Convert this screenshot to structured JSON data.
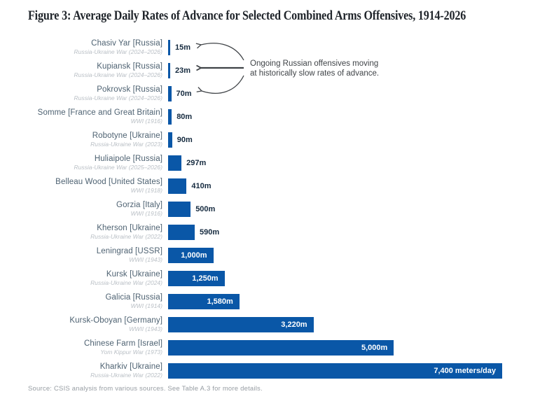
{
  "figure": {
    "title": "Figure 3: Average Daily Rates of Advance for Selected Combined Arms Offensives, 1914-2026",
    "source": "Source: CSIS analysis from various sources. See Table A.3 for more details.",
    "annotation": {
      "line1": "Ongoing Russian offensives moving",
      "line2": "at historically slow rates of advance."
    }
  },
  "chart_data": {
    "type": "bar",
    "orientation": "horizontal",
    "title": "Figure 3: Average Daily Rates of Advance for Selected Combined Arms Offensives, 1914-2026",
    "xlabel": "",
    "ylabel": "",
    "unit": "meters/day",
    "xlim": [
      0,
      7700
    ],
    "grid": false,
    "legend": "none",
    "bar_color": "#0a57a7",
    "inside_label_threshold": 1000,
    "rows": [
      {
        "label": "Chasiv Yar [Russia]",
        "sublabel": "Russia-Ukraine War (2024–2026)",
        "value": 15,
        "value_label": "15m"
      },
      {
        "label": "Kupiansk [Russia]",
        "sublabel": "Russia-Ukraine War (2024–2026)",
        "value": 23,
        "value_label": "23m"
      },
      {
        "label": "Pokrovsk [Russia]",
        "sublabel": "Russia-Ukraine War (2024–2026)",
        "value": 70,
        "value_label": "70m"
      },
      {
        "label": "Somme [France and Great Britain]",
        "sublabel": "WWI (1916)",
        "value": 80,
        "value_label": "80m"
      },
      {
        "label": "Robotyne [Ukraine]",
        "sublabel": "Russia-Ukraine War (2023)",
        "value": 90,
        "value_label": "90m"
      },
      {
        "label": "Huliaipole [Russia]",
        "sublabel": "Russia-Ukraine War (2025–2026)",
        "value": 297,
        "value_label": "297m"
      },
      {
        "label": "Belleau Wood [United States]",
        "sublabel": "WWI (1918)",
        "value": 410,
        "value_label": "410m"
      },
      {
        "label": "Gorzia [Italy]",
        "sublabel": "WWI (1916)",
        "value": 500,
        "value_label": "500m"
      },
      {
        "label": "Kherson [Ukraine]",
        "sublabel": "Russia-Ukraine War (2022)",
        "value": 590,
        "value_label": "590m"
      },
      {
        "label": "Leningrad [USSR]",
        "sublabel": "WWII (1943)",
        "value": 1000,
        "value_label": "1,000m"
      },
      {
        "label": "Kursk [Ukraine]",
        "sublabel": "Russia-Ukraine War (2024)",
        "value": 1250,
        "value_label": "1,250m"
      },
      {
        "label": "Galicia [Russia]",
        "sublabel": "WWI (1914)",
        "value": 1580,
        "value_label": "1,580m"
      },
      {
        "label": "Kursk-Oboyan [Germany]",
        "sublabel": "WWII (1943)",
        "value": 3220,
        "value_label": "3,220m"
      },
      {
        "label": "Chinese Farm [Israel]",
        "sublabel": "Yom Kippur War (1973)",
        "value": 5000,
        "value_label": "5,000m"
      },
      {
        "label": "Kharkiv [Ukraine]",
        "sublabel": "Russia-Ukraine War (2022)",
        "value": 7400,
        "value_label": "7,400 meters/day"
      }
    ],
    "annotation": "Ongoing Russian offensives moving at historically slow rates of advance.",
    "annotation_targets": [
      "Chasiv Yar [Russia]",
      "Kupiansk [Russia]",
      "Pokrovsk [Russia]"
    ],
    "annotation_color": "#3f4347"
  }
}
